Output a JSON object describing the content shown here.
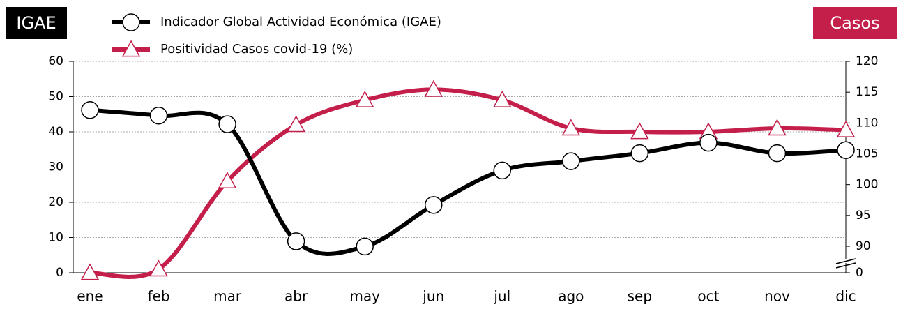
{
  "chart_data": {
    "type": "line",
    "left_badge": "IGAE",
    "right_badge": "Casos",
    "categories": [
      "ene",
      "feb",
      "mar",
      "abr",
      "may",
      "jun",
      "jul",
      "ago",
      "sep",
      "oct",
      "nov",
      "dic"
    ],
    "series": [
      {
        "name": "Indicador Global Actividad Económica (IGAE)",
        "color": "#000000",
        "marker": "circle",
        "axis": "y2",
        "values": [
          112.1,
          111.2,
          109.8,
          90.8,
          89.0,
          96.7,
          102.3,
          103.8,
          105.1,
          106.8,
          105.1,
          105.6
        ]
      },
      {
        "name": "Positividad Casos covid-19  (%)",
        "color": "#c41e4a",
        "marker": "triangle",
        "values": [
          0,
          1,
          26,
          42,
          49,
          52,
          49,
          41,
          40,
          40,
          41,
          40.5
        ]
      }
    ],
    "ylim": [
      0,
      60
    ],
    "yticks": [
      0,
      10,
      20,
      30,
      40,
      50,
      60
    ],
    "y2lim": [
      0,
      120
    ],
    "y2ticks": [
      0,
      90,
      95,
      100,
      105,
      110,
      115,
      120
    ],
    "y2_break": [
      0,
      90
    ],
    "grid": true
  }
}
